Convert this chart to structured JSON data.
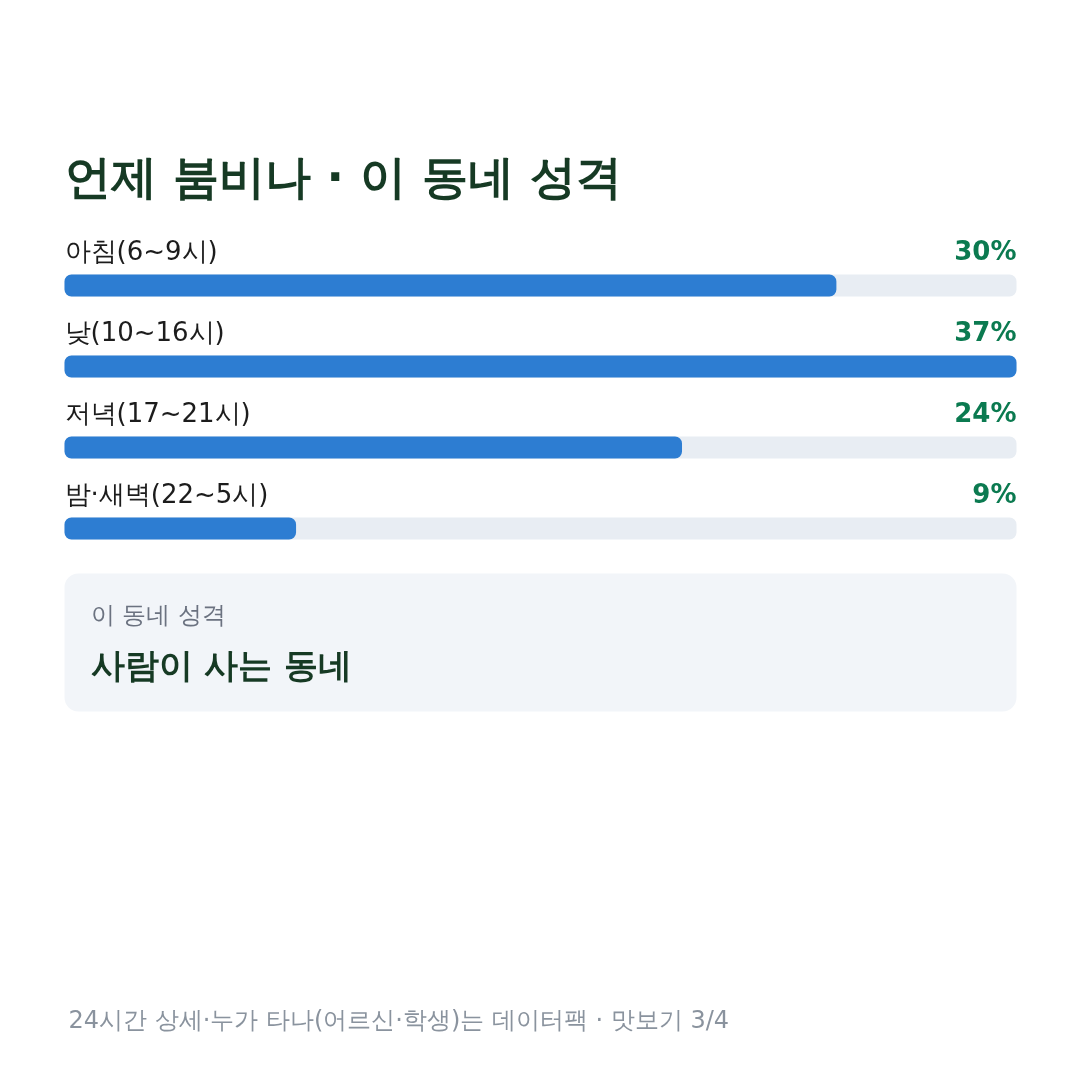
{
  "chart_data": {
    "type": "bar",
    "orientation": "horizontal",
    "title": "언제 붐비나 · 이 동네 성격",
    "categories": [
      "아침(6~9시)",
      "낮(10~16시)",
      "저녁(17~21시)",
      "밤·새벽(22~5시)"
    ],
    "values": [
      30,
      37,
      24,
      9
    ],
    "value_labels": [
      "30%",
      "37%",
      "24%",
      "9%"
    ],
    "color": "#2d7dd2",
    "xlim": [
      0,
      37
    ],
    "tick_labels": "y",
    "annotations": [
      "이 동네 성격",
      "사람이 사는 동네",
      "24시간 상세·누가 타나(어르신·학생)는 데이터팩 · 맛보기 3/4"
    ]
  }
}
